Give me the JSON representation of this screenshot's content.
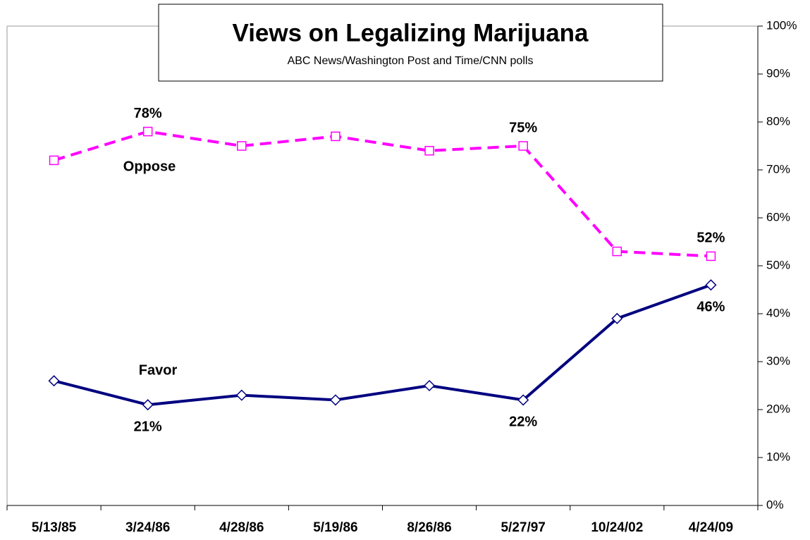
{
  "chart_data": {
    "type": "line",
    "title": "Views on Legalizing Marijuana",
    "subtitle": "ABC News/Washington Post and Time/CNN polls",
    "categories": [
      "5/13/85",
      "3/24/86",
      "4/28/86",
      "5/19/86",
      "8/26/86",
      "5/27/97",
      "10/24/02",
      "4/24/09"
    ],
    "series": [
      {
        "name": "Oppose",
        "color": "#ff00ff",
        "values": [
          72,
          78,
          75,
          77,
          74,
          75,
          53,
          52
        ],
        "value_labels": [
          null,
          "78%",
          null,
          null,
          null,
          "75%",
          null,
          "52%"
        ]
      },
      {
        "name": "Favor",
        "color": "#000080",
        "values": [
          26,
          21,
          23,
          22,
          25,
          22,
          39,
          46
        ],
        "value_labels": [
          null,
          "21%",
          null,
          null,
          null,
          "22%",
          null,
          "46%"
        ]
      }
    ],
    "ylim": [
      0,
      100
    ],
    "yticks": [
      {
        "value": 0,
        "label": "0%"
      },
      {
        "value": 10,
        "label": "10%"
      },
      {
        "value": 20,
        "label": "20%"
      },
      {
        "value": 30,
        "label": "30%"
      },
      {
        "value": 40,
        "label": "40%"
      },
      {
        "value": 50,
        "label": "50%"
      },
      {
        "value": 60,
        "label": "60%"
      },
      {
        "value": 70,
        "label": "70%"
      },
      {
        "value": 80,
        "label": "80%"
      },
      {
        "value": 90,
        "label": "90%"
      },
      {
        "value": 100,
        "label": "100%"
      }
    ]
  }
}
